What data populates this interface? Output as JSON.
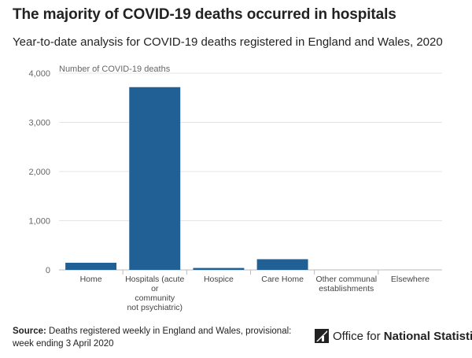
{
  "header": {
    "title": "The majority of COVID-19 deaths occurred in hospitals",
    "subtitle": "Year-to-date analysis for COVID-19 deaths registered in England and Wales, 2020"
  },
  "chart_data": {
    "type": "bar",
    "title": "The majority of COVID-19 deaths occurred in hospitals",
    "subtitle": "Year-to-date analysis for COVID-19 deaths registered in England and Wales, 2020",
    "ylabel": "Number of COVID-19 deaths",
    "xlabel": "",
    "ylim": [
      0,
      4000
    ],
    "yticks": [
      0,
      1000,
      2000,
      3000,
      4000
    ],
    "ytick_labels": [
      "0",
      "1,000",
      "2,000",
      "3,000",
      "4,000"
    ],
    "categories": [
      [
        "Home"
      ],
      [
        "Hospitals (acute",
        "or",
        "community",
        "not psychiatric)"
      ],
      [
        "Hospice"
      ],
      [
        "Care Home"
      ],
      [
        "Other communal",
        "establishments"
      ],
      [
        "Elsewhere"
      ]
    ],
    "values": [
      145,
      3716,
      39,
      217,
      0,
      0
    ],
    "bar_color": "#206095",
    "grid": true
  },
  "footer": {
    "source_label": "Source:",
    "source_text": "Deaths registered weekly in England and Wales, provisional: week ending 3 April 2020",
    "logo_text_regular": "Office for",
    "logo_text_bold": "National Statistics"
  }
}
